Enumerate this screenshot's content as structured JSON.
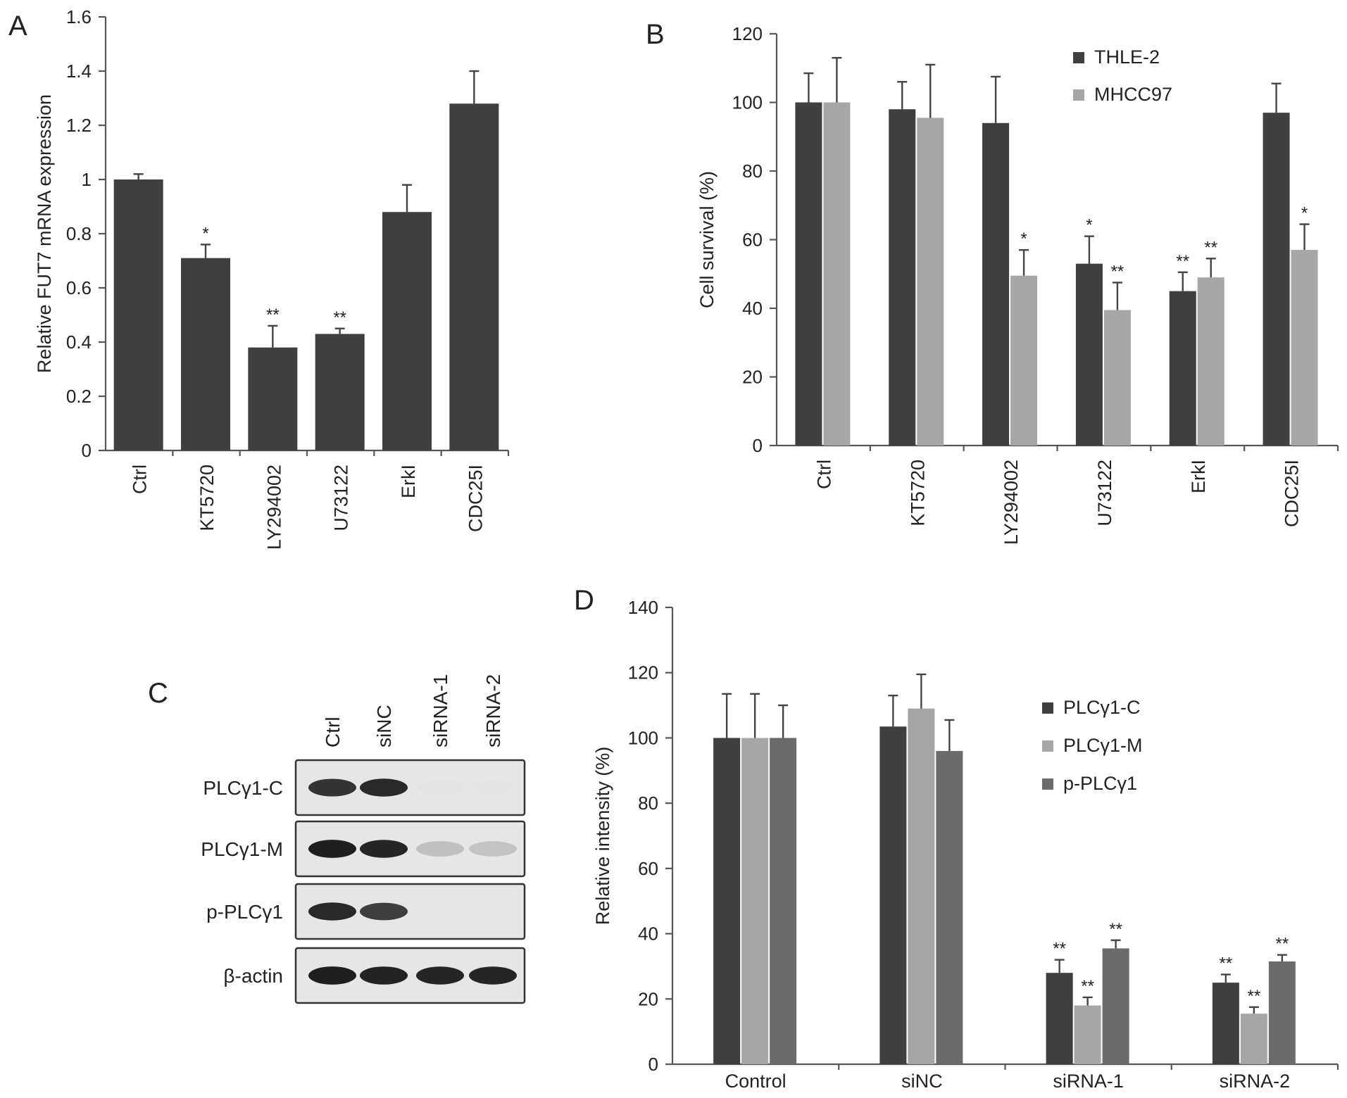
{
  "panels": {
    "A": "A",
    "B": "B",
    "C": "C",
    "D": "D"
  },
  "colors": {
    "dark": "#3f3f3f",
    "light": "#a6a6a6",
    "mid": "#6b6b6b"
  },
  "chart_data": [
    {
      "panel": "A",
      "type": "bar",
      "categories": [
        "Ctrl",
        "KT5720",
        "LY294002",
        "U73122",
        "ErkI",
        "CDC25I"
      ],
      "series": [
        {
          "values": [
            1.0,
            0.71,
            0.38,
            0.43,
            0.88,
            1.28
          ],
          "errors": [
            0.02,
            0.05,
            0.08,
            0.02,
            0.1,
            0.12
          ],
          "significance": [
            "",
            "*",
            "**",
            "**",
            "",
            ""
          ]
        }
      ],
      "ylabel": "Relative FUT7 mRNA expression",
      "ylim": [
        0,
        1.6
      ],
      "yticks": [
        "0",
        "0.2",
        "0.4",
        "0.6",
        "0.8",
        "1",
        "1.2",
        "1.4",
        "1.6"
      ],
      "yticks_values": [
        0,
        0.2,
        0.4,
        0.6,
        0.8,
        1.0,
        1.2,
        1.4,
        1.6
      ],
      "grid": false
    },
    {
      "panel": "B",
      "type": "bar",
      "categories": [
        "Ctrl",
        "KT5720",
        "LY294002",
        "U73122",
        "ErkI",
        "CDC25I"
      ],
      "series": [
        {
          "name": "THLE-2",
          "values": [
            100,
            98,
            94,
            53,
            45,
            97
          ],
          "errors": [
            8.5,
            8,
            13.5,
            8,
            5.5,
            8.5
          ],
          "significance": [
            "",
            "",
            "",
            "*",
            "**",
            ""
          ]
        },
        {
          "name": "MHCC97",
          "values": [
            100,
            95.5,
            49.5,
            39.5,
            49,
            57
          ],
          "errors": [
            13,
            15.5,
            7.5,
            8,
            5.5,
            7.5
          ],
          "significance": [
            "",
            "",
            "*",
            "**",
            "**",
            "*"
          ]
        }
      ],
      "ylabel": "Cell survival (%)",
      "ylim": [
        0,
        120
      ],
      "yticks": [
        "0",
        "20",
        "40",
        "60",
        "80",
        "100",
        "120"
      ],
      "yticks_values": [
        0,
        20,
        40,
        60,
        80,
        100,
        120
      ],
      "legend": "top-right",
      "grid": false
    },
    {
      "panel": "D",
      "type": "bar",
      "categories": [
        "Control",
        "siNC",
        "siRNA-1",
        "siRNA-2"
      ],
      "series": [
        {
          "name": "PLCγ1-C",
          "values": [
            100,
            103.5,
            28,
            25
          ],
          "errors": [
            13.5,
            9.5,
            4,
            2.5
          ],
          "significance": [
            "",
            "",
            "**",
            "**"
          ]
        },
        {
          "name": "PLCγ1-M",
          "values": [
            100,
            109,
            18,
            15.5
          ],
          "errors": [
            13.5,
            10.5,
            2.5,
            2
          ],
          "significance": [
            "",
            "",
            "**",
            "**"
          ]
        },
        {
          "name": "p-PLCγ1",
          "values": [
            100,
            96,
            35.5,
            31.5
          ],
          "errors": [
            10,
            9.5,
            2.5,
            2
          ],
          "significance": [
            "",
            "",
            "**",
            "**"
          ]
        }
      ],
      "ylabel": "Relative intensity (%)",
      "ylim": [
        0,
        140
      ],
      "yticks": [
        "0",
        "20",
        "40",
        "60",
        "80",
        "100",
        "120",
        "140"
      ],
      "yticks_values": [
        0,
        20,
        40,
        60,
        80,
        100,
        120,
        140
      ],
      "legend": "right",
      "grid": false
    }
  ],
  "blot": {
    "lanes": [
      "Ctrl",
      "siNC",
      "siRNA-1",
      "siRNA-2"
    ],
    "rows": [
      {
        "label": "PLCγ1-C",
        "intensities": [
          0.85,
          0.9,
          0.05,
          0.03
        ]
      },
      {
        "label": "PLCγ1-M",
        "intensities": [
          0.95,
          0.92,
          0.3,
          0.28
        ]
      },
      {
        "label": "p-PLCγ1",
        "intensities": [
          0.9,
          0.8,
          0.02,
          0.0
        ]
      },
      {
        "label": "β-actin",
        "intensities": [
          0.95,
          0.93,
          0.92,
          0.92
        ]
      }
    ]
  }
}
